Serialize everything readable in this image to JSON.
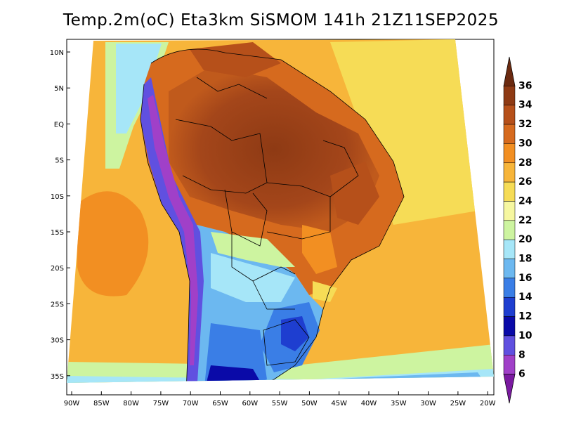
{
  "title": "Temp.2m(oC) Eta3km SiSMOM 141h 21Z11SEP2025",
  "lat_labels": [
    "10N",
    "5N",
    "EQ",
    "5S",
    "10S",
    "15S",
    "20S",
    "25S",
    "30S",
    "35S"
  ],
  "lon_labels": [
    "90W",
    "85W",
    "80W",
    "75W",
    "70W",
    "65W",
    "60W",
    "55W",
    "50W",
    "45W",
    "40W",
    "35W",
    "30W",
    "25W",
    "20W"
  ],
  "colorbar": {
    "labels": [
      "36",
      "34",
      "32",
      "30",
      "28",
      "26",
      "24",
      "22",
      "20",
      "18",
      "16",
      "14",
      "12",
      "10",
      "8",
      "6"
    ],
    "colors": [
      "#6b2a10",
      "#8e3a14",
      "#b6501a",
      "#d66a1e",
      "#f28f22",
      "#f7b53a",
      "#f6dc56",
      "#f6f7a0",
      "#cdf4a0",
      "#a6e6f8",
      "#6cb8f0",
      "#3a7ee6",
      "#1e3ed0",
      "#0a0aa8",
      "#6050e0",
      "#a040c8",
      "#7a1aa0"
    ]
  }
}
